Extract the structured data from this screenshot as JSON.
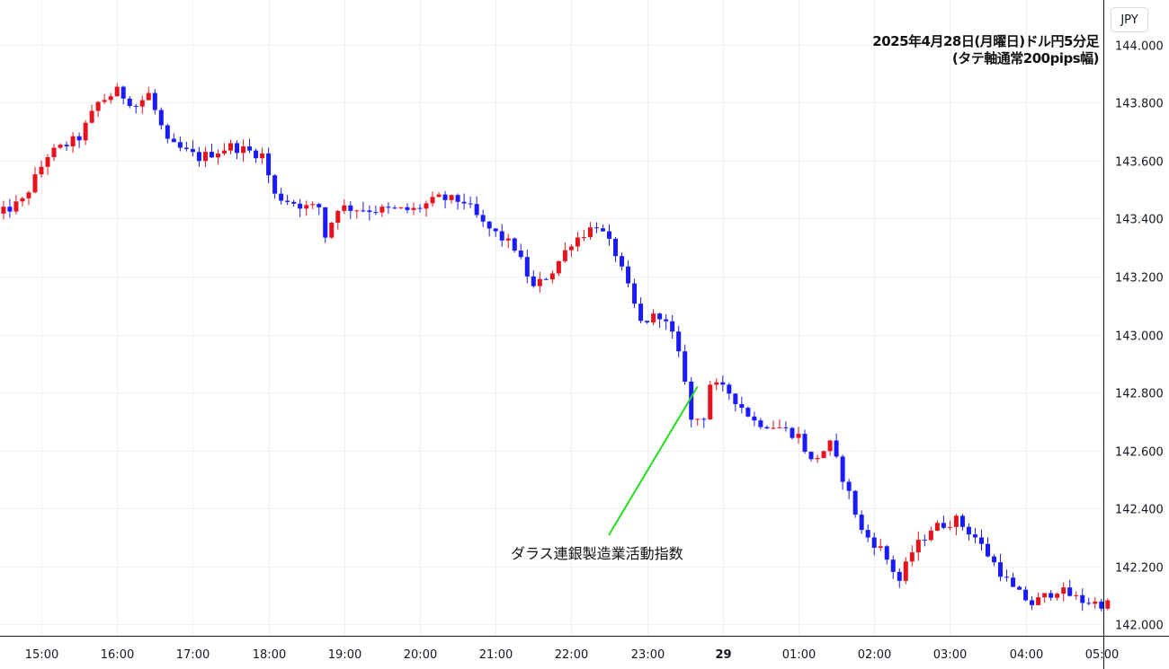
{
  "currency_button": "JPY",
  "title": {
    "line1": "2025年4月28日(月曜日)ドル円5分足",
    "line2": "(タテ軸通常200pips幅)"
  },
  "chart_data": {
    "type": "candlestick",
    "title": "2025年4月28日(月曜日)ドル円5分足",
    "subtitle": "(タテ軸通常200pips幅)",
    "interval_minutes": 5,
    "ylim": [
      141.96,
      144.14
    ],
    "y_ticks": [
      "144.000",
      "143.800",
      "143.600",
      "143.400",
      "143.200",
      "143.000",
      "142.800",
      "142.600",
      "142.400",
      "142.200",
      "142.000"
    ],
    "x_ticks": [
      {
        "label": "15:00",
        "bold": false
      },
      {
        "label": "16:00",
        "bold": false
      },
      {
        "label": "17:00",
        "bold": false
      },
      {
        "label": "18:00",
        "bold": false
      },
      {
        "label": "19:00",
        "bold": false
      },
      {
        "label": "20:00",
        "bold": false
      },
      {
        "label": "21:00",
        "bold": false
      },
      {
        "label": "22:00",
        "bold": false
      },
      {
        "label": "23:00",
        "bold": false
      },
      {
        "label": "29",
        "bold": true
      },
      {
        "label": "01:00",
        "bold": false
      },
      {
        "label": "02:00",
        "bold": false
      },
      {
        "label": "03:00",
        "bold": false
      },
      {
        "label": "04:00",
        "bold": false
      },
      {
        "label": "05:00",
        "bold": false
      }
    ],
    "up_color": "#e8121d",
    "down_color": "#1a1aff",
    "grid": true,
    "anchors": [
      {
        "t": "14:25",
        "p": 143.4
      },
      {
        "t": "14:50",
        "p": 143.46
      },
      {
        "t": "15:10",
        "p": 143.62
      },
      {
        "t": "15:35",
        "p": 143.68
      },
      {
        "t": "15:50",
        "p": 143.8
      },
      {
        "t": "16:05",
        "p": 143.84
      },
      {
        "t": "16:20",
        "p": 143.79
      },
      {
        "t": "16:30",
        "p": 143.83
      },
      {
        "t": "16:45",
        "p": 143.66
      },
      {
        "t": "17:10",
        "p": 143.61
      },
      {
        "t": "17:35",
        "p": 143.65
      },
      {
        "t": "18:00",
        "p": 143.62
      },
      {
        "t": "18:10",
        "p": 143.48
      },
      {
        "t": "18:35",
        "p": 143.44
      },
      {
        "t": "18:45",
        "p": 143.44
      },
      {
        "t": "18:50",
        "p": 143.34
      },
      {
        "t": "19:00",
        "p": 143.44
      },
      {
        "t": "19:30",
        "p": 143.43
      },
      {
        "t": "20:00",
        "p": 143.43
      },
      {
        "t": "20:20",
        "p": 143.47
      },
      {
        "t": "20:40",
        "p": 143.46
      },
      {
        "t": "20:55",
        "p": 143.38
      },
      {
        "t": "21:20",
        "p": 143.3
      },
      {
        "t": "21:35",
        "p": 143.16
      },
      {
        "t": "21:50",
        "p": 143.22
      },
      {
        "t": "22:05",
        "p": 143.32
      },
      {
        "t": "22:25",
        "p": 143.38
      },
      {
        "t": "22:40",
        "p": 143.28
      },
      {
        "t": "23:00",
        "p": 143.04
      },
      {
        "t": "23:15",
        "p": 143.07
      },
      {
        "t": "23:25",
        "p": 143.0
      },
      {
        "t": "23:35",
        "p": 142.85
      },
      {
        "t": "23:40",
        "p": 142.7
      },
      {
        "t": "23:50",
        "p": 142.72
      },
      {
        "t": "23:55",
        "p": 142.83
      },
      {
        "t": "00:10",
        "p": 142.8
      },
      {
        "t": "00:30",
        "p": 142.7
      },
      {
        "t": "00:50",
        "p": 142.68
      },
      {
        "t": "01:05",
        "p": 142.65
      },
      {
        "t": "01:15",
        "p": 142.56
      },
      {
        "t": "01:30",
        "p": 142.62
      },
      {
        "t": "01:45",
        "p": 142.45
      },
      {
        "t": "01:55",
        "p": 142.32
      },
      {
        "t": "02:10",
        "p": 142.26
      },
      {
        "t": "02:25",
        "p": 142.15
      },
      {
        "t": "02:35",
        "p": 142.25
      },
      {
        "t": "02:50",
        "p": 142.33
      },
      {
        "t": "03:10",
        "p": 142.36
      },
      {
        "t": "03:25",
        "p": 142.3
      },
      {
        "t": "03:40",
        "p": 142.21
      },
      {
        "t": "03:55",
        "p": 142.12
      },
      {
        "t": "04:10",
        "p": 142.07
      },
      {
        "t": "04:30",
        "p": 142.12
      },
      {
        "t": "04:50",
        "p": 142.08
      },
      {
        "t": "05:05",
        "p": 142.07
      }
    ]
  },
  "annotation": {
    "label": "ダラス連銀製造業活動指数",
    "line_color": "#22dd22",
    "points_to_time": "23:40"
  }
}
